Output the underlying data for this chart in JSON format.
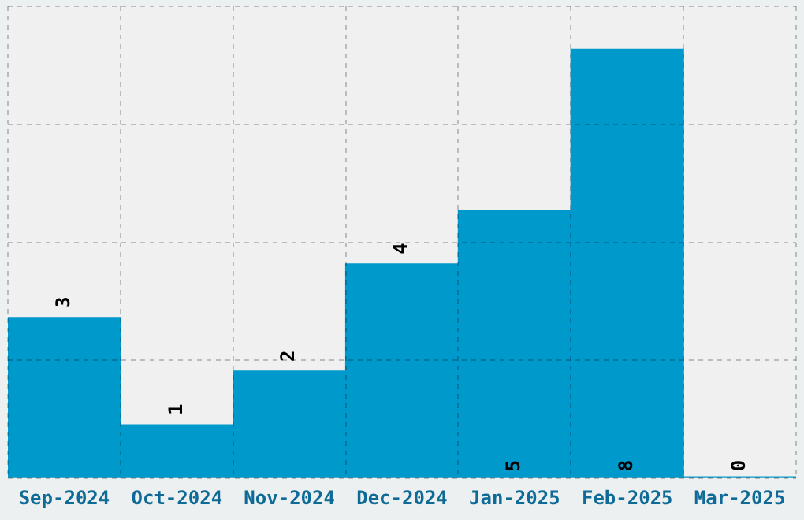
{
  "chart_data": {
    "type": "bar",
    "categories": [
      "Sep-2024",
      "Oct-2024",
      "Nov-2024",
      "Dec-2024",
      "Jan-2025",
      "Feb-2025",
      "Mar-2025"
    ],
    "values": [
      3,
      1,
      2,
      4,
      5,
      8,
      0
    ],
    "color": "#0099cc",
    "data_labels": true,
    "ylim": [
      0,
      8.8
    ],
    "yticks": [
      {
        "value": 0,
        "label": null
      },
      {
        "value": 2.2,
        "label": null
      },
      {
        "value": 4.4,
        "label": null
      },
      {
        "value": 6.6,
        "label": null
      },
      {
        "value": 8.8,
        "label": null
      }
    ],
    "tick_labels": "x",
    "grid": true,
    "legend": false
  }
}
